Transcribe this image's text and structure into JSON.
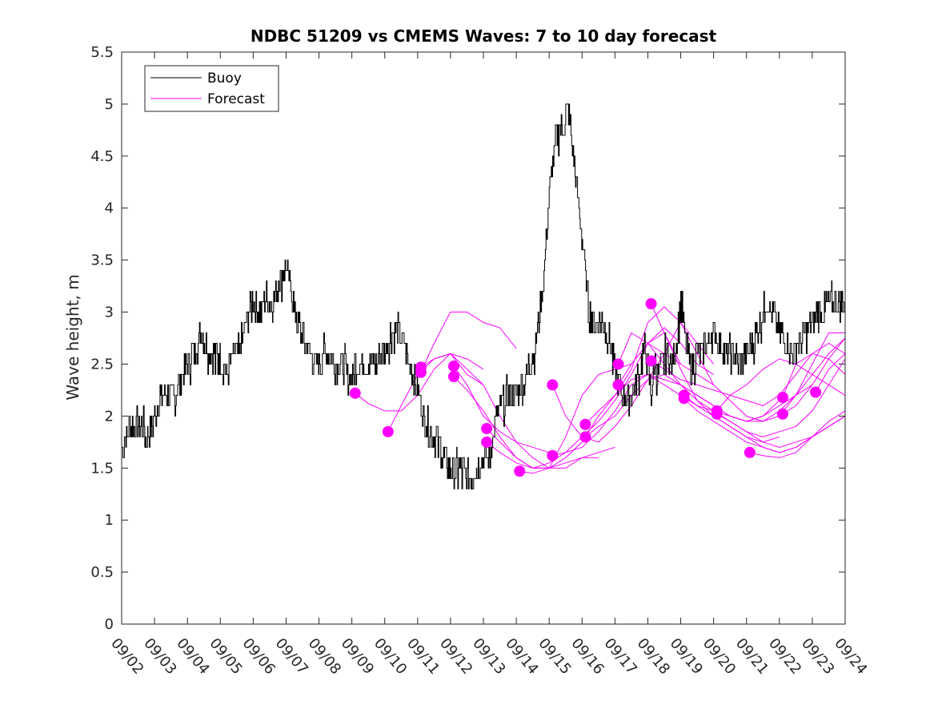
{
  "chart_data": {
    "type": "line",
    "title": "NDBC 51209 vs CMEMS Waves: 7 to 10 day forecast",
    "xlabel": "",
    "ylabel": "Wave height, m",
    "xlim": [
      0,
      22
    ],
    "ylim": [
      0,
      5.5
    ],
    "grid": false,
    "x_tick_labels": [
      "09/02",
      "09/03",
      "09/04",
      "09/05",
      "09/06",
      "09/07",
      "09/08",
      "09/09",
      "09/10",
      "09/11",
      "09/12",
      "09/13",
      "09/14",
      "09/15",
      "09/16",
      "09/17",
      "09/18",
      "09/19",
      "09/20",
      "09/21",
      "09/22",
      "09/23",
      "09/24"
    ],
    "y_ticks": [
      0,
      0.5,
      1,
      1.5,
      2,
      2.5,
      3,
      3.5,
      4,
      4.5,
      5,
      5.5
    ],
    "y_tick_labels": [
      "0",
      "0.5",
      "1",
      "1.5",
      "2",
      "2.5",
      "3",
      "3.5",
      "4",
      "4.5",
      "5",
      "5.5"
    ],
    "legend": {
      "position": "top-left",
      "entries": [
        "Buoy",
        "Forecast"
      ]
    },
    "colors": {
      "buoy": "#000000",
      "forecast": "#ff00ff"
    },
    "buoy": {
      "name": "Buoy",
      "x": [
        0,
        0.2,
        0.4,
        0.6,
        0.8,
        1.0,
        1.2,
        1.4,
        1.6,
        1.8,
        2.0,
        2.2,
        2.4,
        2.6,
        2.8,
        3.0,
        3.2,
        3.4,
        3.6,
        3.8,
        4.0,
        4.2,
        4.4,
        4.6,
        4.8,
        5.0,
        5.2,
        5.4,
        5.6,
        5.8,
        6.0,
        6.2,
        6.4,
        6.6,
        6.8,
        7.0,
        7.2,
        7.4,
        7.6,
        7.8,
        8.0,
        8.2,
        8.4,
        8.6,
        8.8,
        9.0,
        9.2,
        9.4,
        9.6,
        9.8,
        10.0,
        10.2,
        10.4,
        10.6,
        10.8,
        11.0,
        11.2,
        11.4,
        11.6,
        11.8,
        12.0,
        12.2,
        12.4,
        12.6,
        12.8,
        13.0,
        13.2,
        13.4,
        13.6,
        13.8,
        14.0,
        14.2,
        14.4,
        14.6,
        14.8,
        15.0,
        15.2,
        15.4,
        15.6,
        15.8,
        15.9,
        16.0,
        16.1,
        16.2,
        16.3,
        16.4,
        16.5,
        16.6,
        16.7,
        16.8,
        16.9,
        17.0,
        17.1,
        17.2,
        17.3,
        17.4,
        17.5,
        17.6,
        17.8,
        18.0,
        18.2,
        18.4,
        18.6,
        18.8,
        19.0,
        19.2,
        19.4,
        19.6,
        19.8,
        20.0,
        20.2,
        20.4,
        20.6,
        20.8,
        21.0,
        21.2,
        21.4,
        21.6,
        21.8,
        22.0
      ],
      "values": [
        1.7,
        1.85,
        1.85,
        1.9,
        1.8,
        2.0,
        2.2,
        2.15,
        2.2,
        2.35,
        2.5,
        2.6,
        2.8,
        2.65,
        2.55,
        2.55,
        2.4,
        2.6,
        2.65,
        2.9,
        3.1,
        3.0,
        3.15,
        3.1,
        3.3,
        3.45,
        3.1,
        2.85,
        2.7,
        2.55,
        2.5,
        2.6,
        2.55,
        2.5,
        2.45,
        2.4,
        2.55,
        2.5,
        2.45,
        2.55,
        2.6,
        2.8,
        2.85,
        2.65,
        2.45,
        2.25,
        2.0,
        1.85,
        1.75,
        1.6,
        1.5,
        1.45,
        1.45,
        1.4,
        1.5,
        1.6,
        1.65,
        2.0,
        2.1,
        2.2,
        2.2,
        2.3,
        2.5,
        2.7,
        3.2,
        4.1,
        4.7,
        4.8,
        4.9,
        4.3,
        3.7,
        3.0,
        2.9,
        2.9,
        2.8,
        2.4,
        2.2,
        2.15,
        2.3,
        2.5,
        2.65,
        2.45,
        2.2,
        2.5,
        2.4,
        2.5,
        2.55,
        2.6,
        2.5,
        2.6,
        2.8,
        3.1,
        2.8,
        2.6,
        2.5,
        2.5,
        2.6,
        2.6,
        2.7,
        2.8,
        2.7,
        2.6,
        2.6,
        2.5,
        2.6,
        2.7,
        2.9,
        3.1,
        3.0,
        2.8,
        2.7,
        2.6,
        2.7,
        2.8,
        2.9,
        3.0,
        3.05,
        3.1,
        3.1,
        3.1
      ]
    },
    "forecast": {
      "name": "Forecast",
      "series": [
        {
          "x": [
            7.1,
            7.5,
            8.0,
            8.5,
            9.0,
            9.5,
            10.0,
            10.5,
            11.0
          ],
          "values": [
            2.22,
            2.12,
            2.05,
            2.05,
            2.2,
            2.45,
            2.6,
            2.55,
            2.45
          ]
        },
        {
          "x": [
            8.1,
            8.5,
            9.0,
            9.5,
            10.0,
            10.5,
            11.0
          ],
          "values": [
            1.85,
            2.1,
            2.4,
            2.55,
            2.6,
            2.4,
            2.3
          ]
        },
        {
          "x": [
            9.1,
            9.5,
            10.0,
            10.5,
            11.0,
            11.5,
            12.0
          ],
          "values": [
            2.42,
            2.7,
            3.0,
            3.0,
            2.9,
            2.85,
            2.65
          ]
        },
        {
          "x": [
            9.1,
            9.5,
            10.0,
            10.5,
            11.0,
            11.5,
            12.0,
            12.5,
            13.0,
            13.5,
            14.0,
            14.5
          ],
          "values": [
            2.47,
            2.55,
            2.6,
            2.45,
            2.3,
            2.0,
            1.75,
            1.6,
            1.5,
            1.5,
            1.6,
            1.6
          ]
        },
        {
          "x": [
            10.1,
            10.5,
            11.0,
            11.5,
            12.0,
            12.5,
            13.0
          ],
          "values": [
            2.48,
            2.3,
            2.0,
            1.85,
            1.75,
            1.7,
            1.65
          ]
        },
        {
          "x": [
            10.1,
            10.5,
            11.0,
            11.5,
            12.0,
            12.5,
            13.0,
            13.5,
            14.0,
            14.5,
            15.0
          ],
          "values": [
            2.38,
            2.25,
            2.05,
            1.8,
            1.6,
            1.5,
            1.5,
            1.55,
            1.6,
            1.65,
            1.7
          ]
        },
        {
          "x": [
            11.1,
            11.5,
            12.0,
            12.5,
            13.0,
            13.5,
            14.0,
            14.5,
            15.0,
            15.5,
            16.0,
            16.5,
            17.0
          ],
          "values": [
            1.88,
            1.75,
            1.6,
            1.5,
            1.5,
            1.8,
            2.2,
            2.4,
            2.45,
            2.5,
            2.7,
            2.8,
            2.5
          ]
        },
        {
          "x": [
            11.1,
            11.5,
            12.0,
            12.5,
            13.0,
            13.5,
            14.0,
            14.5,
            15.0,
            15.5,
            16.0,
            16.5,
            17.0,
            17.5,
            18.0
          ],
          "values": [
            1.75,
            1.65,
            1.55,
            1.5,
            1.55,
            1.65,
            1.8,
            1.95,
            2.15,
            2.4,
            2.7,
            2.85,
            2.7,
            2.5,
            2.4
          ]
        },
        {
          "x": [
            12.1,
            12.5,
            13.0,
            13.5,
            14.0,
            14.5,
            15.0,
            15.5,
            16.0,
            16.5,
            17.0,
            17.5,
            18.0
          ],
          "values": [
            1.47,
            1.45,
            1.5,
            1.6,
            1.75,
            2.0,
            2.2,
            2.45,
            2.9,
            3.05,
            2.9,
            2.6,
            2.3
          ]
        },
        {
          "x": [
            13.1,
            13.5,
            14.0,
            14.5,
            15.0,
            15.5,
            16.0,
            16.5,
            17.0,
            17.5,
            18.0
          ],
          "values": [
            2.3,
            2.0,
            1.8,
            1.75,
            1.9,
            2.1,
            2.35,
            2.6,
            2.9,
            2.7,
            2.5
          ]
        },
        {
          "x": [
            13.1,
            13.5,
            14.0,
            14.5,
            15.0,
            15.5,
            16.0,
            16.5,
            17.0,
            17.5,
            18.0,
            18.5,
            19.0,
            19.5,
            20.0
          ],
          "values": [
            1.62,
            1.65,
            1.7,
            1.85,
            2.05,
            2.3,
            2.4,
            2.3,
            2.2,
            2.1,
            2.0,
            1.9,
            1.8,
            1.75,
            1.8
          ]
        },
        {
          "x": [
            14.1,
            14.5,
            15.0,
            15.5,
            16.0,
            16.5,
            17.0,
            17.5,
            18.0,
            18.5,
            19.0,
            19.5,
            20.0,
            20.5,
            21.0
          ],
          "values": [
            1.92,
            2.05,
            2.2,
            2.35,
            2.4,
            2.35,
            2.3,
            2.2,
            2.1,
            2.0,
            1.95,
            2.0,
            2.1,
            2.2,
            2.3
          ]
        },
        {
          "x": [
            14.1,
            14.5,
            15.0,
            15.5,
            16.0,
            16.5,
            17.0,
            17.5,
            18.0,
            18.5,
            19.0,
            19.5,
            20.0,
            20.5,
            21.0,
            21.5,
            22.0
          ],
          "values": [
            1.8,
            1.9,
            2.0,
            2.2,
            2.35,
            2.4,
            2.3,
            2.15,
            2.05,
            1.95,
            1.85,
            1.75,
            1.7,
            1.75,
            1.8,
            1.9,
            2.0
          ]
        },
        {
          "x": [
            15.1,
            15.5,
            16.0,
            16.5,
            17.0,
            17.5,
            18.0,
            18.5,
            19.0,
            19.5,
            20.0
          ],
          "values": [
            2.5,
            2.8,
            2.7,
            2.5,
            2.3,
            2.2,
            2.1,
            2.0,
            1.95,
            2.0,
            2.15
          ]
        },
        {
          "x": [
            15.1,
            15.5,
            16.0,
            16.5,
            17.0,
            17.5,
            18.0,
            18.5,
            19.0,
            19.5,
            20.0,
            20.5,
            21.0,
            21.5,
            22.0
          ],
          "values": [
            2.3,
            2.5,
            2.7,
            2.6,
            2.5,
            2.4,
            2.3,
            2.15,
            2.0,
            1.95,
            2.05,
            2.2,
            2.4,
            2.6,
            2.75
          ]
        },
        {
          "x": [
            16.1,
            16.5,
            17.0,
            17.5,
            18.0,
            18.5,
            19.0,
            19.5,
            20.0,
            20.5,
            21.0,
            21.5,
            22.0
          ],
          "values": [
            3.08,
            2.8,
            2.45,
            2.15,
            2.0,
            1.9,
            1.8,
            1.7,
            1.65,
            1.7,
            1.8,
            1.9,
            2.0
          ]
        },
        {
          "x": [
            16.1,
            16.5,
            17.0,
            17.5,
            18.0,
            18.5,
            19.0,
            19.5,
            20.0,
            20.5,
            21.0,
            21.5,
            22.0
          ],
          "values": [
            2.53,
            2.45,
            2.35,
            2.3,
            2.25,
            2.2,
            2.15,
            2.1,
            2.2,
            2.4,
            2.6,
            2.7,
            2.6
          ]
        },
        {
          "x": [
            17.1,
            17.5,
            18.0,
            18.5,
            19.0,
            19.5,
            20.0,
            20.5,
            21.0,
            21.5,
            22.0
          ],
          "values": [
            2.2,
            2.1,
            2.05,
            2.0,
            1.95,
            1.95,
            2.0,
            2.2,
            2.5,
            2.8,
            2.8
          ]
        },
        {
          "x": [
            17.1,
            17.5,
            18.0,
            18.5,
            19.0,
            19.5,
            20.0,
            20.5,
            21.0,
            21.5,
            22.0
          ],
          "values": [
            2.17,
            2.05,
            1.95,
            1.85,
            1.75,
            1.7,
            1.65,
            1.7,
            1.8,
            1.95,
            2.05
          ]
        },
        {
          "x": [
            18.1,
            18.5,
            19.0,
            19.5,
            20.0,
            20.5,
            21.0,
            21.5,
            22.0
          ],
          "values": [
            2.05,
            2.2,
            2.3,
            2.45,
            2.55,
            2.5,
            2.4,
            2.3,
            2.2
          ]
        },
        {
          "x": [
            18.1,
            18.5,
            19.0,
            19.5,
            20.0,
            20.5,
            21.0,
            21.5,
            22.0
          ],
          "values": [
            2.02,
            1.95,
            1.85,
            1.8,
            1.85,
            1.9,
            2.05,
            2.3,
            2.55
          ]
        },
        {
          "x": [
            19.1,
            19.5,
            20.0,
            20.5,
            21.0,
            21.5,
            22.0
          ],
          "values": [
            1.65,
            1.62,
            1.6,
            1.65,
            1.8,
            1.9,
            2.0
          ]
        },
        {
          "x": [
            20.1,
            20.5,
            21.0,
            21.5,
            22.0
          ],
          "values": [
            2.18,
            2.5,
            2.6,
            2.55,
            2.4
          ]
        },
        {
          "x": [
            20.1,
            20.5,
            21.0,
            21.5,
            22.0
          ],
          "values": [
            2.02,
            2.1,
            2.3,
            2.55,
            2.75
          ]
        },
        {
          "x": [
            21.1,
            21.5,
            22.0
          ],
          "values": [
            2.23,
            2.45,
            2.6
          ]
        }
      ]
    }
  }
}
